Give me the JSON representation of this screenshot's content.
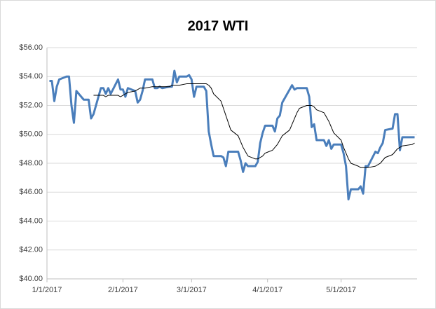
{
  "chart_data": {
    "type": "line",
    "title": "2017 WTI",
    "x": [
      "1/2/2017",
      "1/3/2017",
      "1/4/2017",
      "1/5/2017",
      "1/6/2017",
      "1/9/2017",
      "1/10/2017",
      "1/11/2017",
      "1/12/2017",
      "1/13/2017",
      "1/16/2017",
      "1/17/2017",
      "1/18/2017",
      "1/19/2017",
      "1/20/2017",
      "1/23/2017",
      "1/24/2017",
      "1/25/2017",
      "1/26/2017",
      "1/27/2017",
      "1/30/2017",
      "1/31/2017",
      "2/1/2017",
      "2/2/2017",
      "2/3/2017",
      "2/6/2017",
      "2/7/2017",
      "2/8/2017",
      "2/9/2017",
      "2/10/2017",
      "2/13/2017",
      "2/14/2017",
      "2/15/2017",
      "2/16/2017",
      "2/17/2017",
      "2/20/2017",
      "2/21/2017",
      "2/22/2017",
      "2/23/2017",
      "2/24/2017",
      "2/27/2017",
      "2/28/2017",
      "3/1/2017",
      "3/2/2017",
      "3/3/2017",
      "3/6/2017",
      "3/7/2017",
      "3/8/2017",
      "3/9/2017",
      "3/10/2017",
      "3/13/2017",
      "3/14/2017",
      "3/15/2017",
      "3/16/2017",
      "3/17/2017",
      "3/20/2017",
      "3/21/2017",
      "3/22/2017",
      "3/23/2017",
      "3/24/2017",
      "3/27/2017",
      "3/28/2017",
      "3/29/2017",
      "3/30/2017",
      "3/31/2017",
      "4/3/2017",
      "4/4/2017",
      "4/5/2017",
      "4/6/2017",
      "4/7/2017",
      "4/10/2017",
      "4/11/2017",
      "4/12/2017",
      "4/13/2017",
      "4/14/2017",
      "4/17/2017",
      "4/18/2017",
      "4/19/2017",
      "4/20/2017",
      "4/21/2017",
      "4/24/2017",
      "4/25/2017",
      "4/26/2017",
      "4/27/2017",
      "4/28/2017",
      "5/1/2017",
      "5/2/2017",
      "5/3/2017",
      "5/4/2017",
      "5/5/2017",
      "5/8/2017",
      "5/9/2017",
      "5/10/2017",
      "5/11/2017",
      "5/12/2017",
      "5/15/2017",
      "5/16/2017",
      "5/17/2017",
      "5/18/2017",
      "5/19/2017",
      "5/22/2017",
      "5/23/2017",
      "5/24/2017",
      "5/25/2017",
      "5/26/2017",
      "5/30/2017",
      "5/31/2017"
    ],
    "series": [
      {
        "color": "#4a7ebb",
        "width": 3,
        "values": [
          53.7,
          53.7,
          52.3,
          53.3,
          53.8,
          54.0,
          54.0,
          52.0,
          50.8,
          53.0,
          52.4,
          52.4,
          52.4,
          51.1,
          51.4,
          53.2,
          53.2,
          52.8,
          53.2,
          52.8,
          53.8,
          53.1,
          53.1,
          52.6,
          53.2,
          53.0,
          52.2,
          52.4,
          53.0,
          53.8,
          53.8,
          53.2,
          53.2,
          53.3,
          53.2,
          53.3,
          53.3,
          54.4,
          53.6,
          54.0,
          54.0,
          54.1,
          53.8,
          52.6,
          53.3,
          53.3,
          53.0,
          50.2,
          49.3,
          48.5,
          48.5,
          48.4,
          47.8,
          48.8,
          48.8,
          48.8,
          48.2,
          47.4,
          48.0,
          47.8,
          47.8,
          48.1,
          49.4,
          50.1,
          50.6,
          50.6,
          50.2,
          51.1,
          51.3,
          52.2,
          53.1,
          53.4,
          53.1,
          53.2,
          53.2,
          53.2,
          52.6,
          50.5,
          50.7,
          49.6,
          49.6,
          49.2,
          49.6,
          49.0,
          49.3,
          49.3,
          48.7,
          47.8,
          45.5,
          46.2,
          46.2,
          46.4,
          45.9,
          47.8,
          47.8,
          48.8,
          48.7,
          49.1,
          49.4,
          50.3,
          50.4,
          51.4,
          51.4,
          48.9,
          49.8,
          49.8,
          49.8
        ]
      },
      {
        "color": "#000000",
        "width": 1,
        "values": [
          null,
          null,
          null,
          null,
          null,
          null,
          null,
          null,
          null,
          null,
          null,
          null,
          null,
          null,
          52.7,
          52.7,
          52.7,
          52.6,
          52.7,
          52.7,
          52.7,
          52.6,
          52.7,
          52.8,
          52.9,
          53.0,
          53.1,
          53.2,
          53.2,
          53.2,
          53.3,
          53.3,
          53.3,
          53.3,
          53.3,
          53.3,
          53.4,
          53.4,
          53.4,
          53.4,
          53.5,
          53.5,
          53.5,
          53.5,
          53.5,
          53.5,
          53.5,
          53.4,
          53.2,
          52.8,
          52.3,
          51.8,
          51.3,
          50.8,
          50.3,
          49.9,
          49.5,
          49.1,
          48.8,
          48.5,
          48.3,
          48.3,
          48.4,
          48.5,
          48.7,
          48.9,
          49.1,
          49.3,
          49.6,
          49.9,
          50.3,
          50.7,
          51.1,
          51.5,
          51.8,
          52.0,
          52.0,
          52.0,
          51.9,
          51.7,
          51.5,
          51.2,
          50.9,
          50.5,
          50.1,
          49.6,
          49.1,
          48.7,
          48.3,
          48.0,
          47.8,
          47.7,
          47.7,
          47.7,
          47.7,
          47.8,
          47.9,
          48.0,
          48.2,
          48.4,
          48.6,
          48.8,
          49.0,
          49.1,
          49.2,
          49.3,
          49.4
        ]
      }
    ],
    "xlim": [
      "1/1/2017",
      "6/1/2017"
    ],
    "xticks": [
      "1/1/2017",
      "2/1/2017",
      "3/1/2017",
      "4/1/2017",
      "5/1/2017"
    ],
    "ylim": [
      40,
      56
    ],
    "yticks": [
      {
        "value": 40,
        "label": "$40.00"
      },
      {
        "value": 42,
        "label": "$42.00"
      },
      {
        "value": 44,
        "label": "$44.00"
      },
      {
        "value": 46,
        "label": "$46.00"
      },
      {
        "value": 48,
        "label": "$48.00"
      },
      {
        "value": 50,
        "label": "$50.00"
      },
      {
        "value": 52,
        "label": "$52.00"
      },
      {
        "value": 54,
        "label": "$54.00"
      },
      {
        "value": 56,
        "label": "$56.00"
      }
    ],
    "grid": true
  }
}
